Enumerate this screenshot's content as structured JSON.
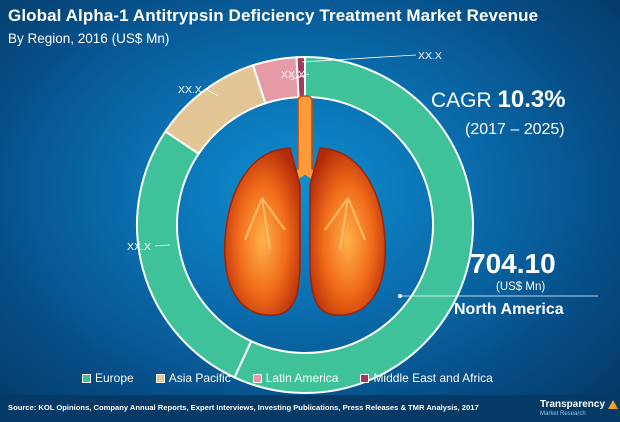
{
  "chart_data": {
    "type": "donut",
    "title": "Global Alpha-1 Antitrypsin Deficiency Treatment Market Revenue",
    "subtitle": "By Region, 2016 (US$ Mn)",
    "categories": [
      "North America",
      "Europe",
      "Asia Pacific",
      "Latin America",
      "Middle East and Africa"
    ],
    "values": [
      56.9,
      27.5,
      10.6,
      4.2,
      0.8
    ],
    "value_unit": "percent of total (estimated from arc length)",
    "slice_labels": [
      "",
      "XX.X",
      "XX.X",
      "XX.X",
      "XX.X"
    ],
    "colors": [
      "#3fc29a",
      "#3fc29a",
      "#e4c596",
      "#e59aa5",
      "#a43b5d"
    ],
    "legend": [
      "Europe",
      "Asia Pacific",
      "Latin America",
      "Middle East and Africa"
    ],
    "legend_position": "bottom",
    "callout": {
      "value": "704.10",
      "unit": "(US$ Mn)",
      "region": "North America"
    },
    "cagr": {
      "label": "CAGR",
      "value": "10.3%",
      "period": "(2017 – 2025)"
    }
  },
  "footer": {
    "source": "Source: KOL Opinions, Company Annual Reports, Expert Interviews, Investing Publications, Press Releases & TMR Analysis, 2017",
    "brand_name": "Transparency",
    "brand_tagline": "Market Research"
  },
  "icons": {
    "illustration": "lungs-icon",
    "brand_mark": "triangle-logo-icon"
  }
}
